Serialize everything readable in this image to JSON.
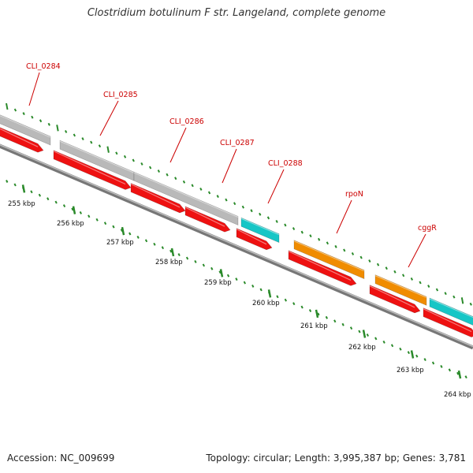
{
  "title": "Clostridium botulinum F str. Langeland, complete genome",
  "footer": {
    "accession": "Accession: NC_009699",
    "summary": "Topology: circular; Length: 3,995,387 bp; Genes: 3,781"
  },
  "colors": {
    "cds_forward": "#b9b9b9",
    "cds_reverse": "#ee1111",
    "rna": "#17c6c6",
    "named_gene": "#f08c00",
    "backbone": "#777777",
    "ticks": "#2a8a2a",
    "gene_label": "#cc0000",
    "scale_label": "#111111"
  },
  "gene_labels": [
    "CLI_0284",
    "CLI_0285",
    "CLI_0286",
    "CLI_0287",
    "CLI_0288",
    "rpoN",
    "cggR"
  ],
  "scale_labels": [
    "255 kbp",
    "256 kbp",
    "257 kbp",
    "258 kbp",
    "259 kbp",
    "260 kbp",
    "261 kbp",
    "262 kbp",
    "263 kbp",
    "264 kbp"
  ]
}
